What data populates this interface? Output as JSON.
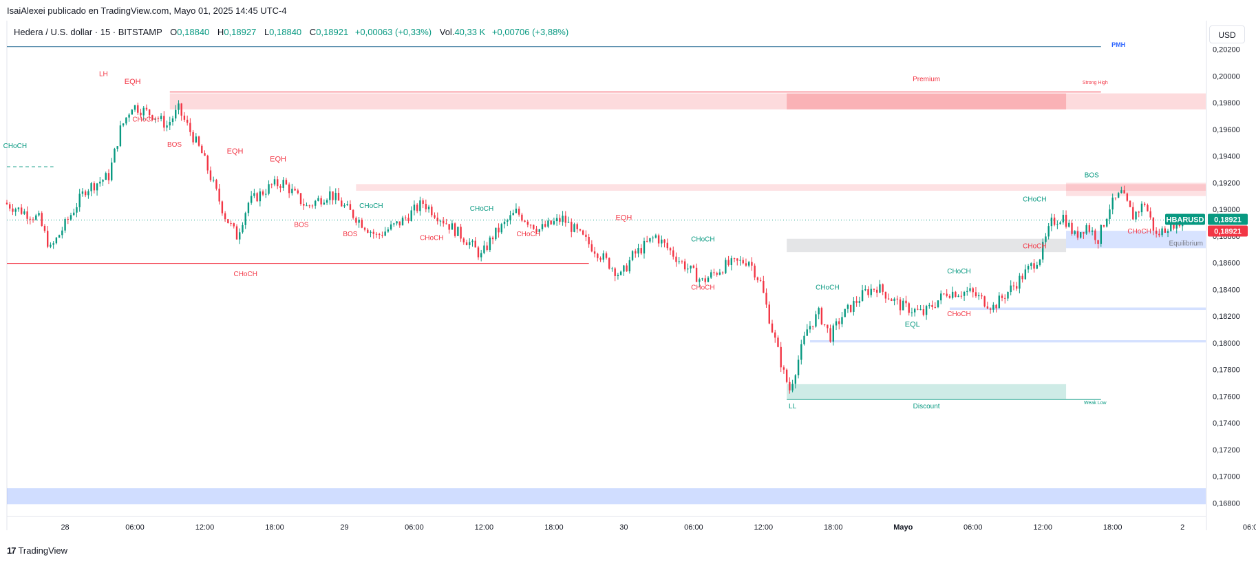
{
  "header": {
    "publish_line": "IsaiAlexei publicado en TradingView.com, Mayo 01, 2025 14:45 UTC-4"
  },
  "symbol": {
    "name": "Hedera / U.S. dollar · 15 · BITSTAMP",
    "o_label": "O",
    "o": "0,18840",
    "h_label": "H",
    "h": "0,18927",
    "l_label": "L",
    "l": "0,18840",
    "c_label": "C",
    "c": "0,18921",
    "change": "+0,00063 (+0,33%)",
    "vol_label": "Vol.",
    "vol": "40,33 K",
    "vol_change": "+0,00706 (+3,88%)"
  },
  "currency_button": "USD",
  "footer": {
    "brand": "TradingView",
    "logo": "17"
  },
  "colors": {
    "up": "#089981",
    "down": "#f23645",
    "premium": "#f23645",
    "discount": "#089981",
    "equilibrium": "#9598a1",
    "zone_blue": "#2962ff"
  },
  "chart_data": {
    "type": "candlestick",
    "symbol_tag": "HBARUSD",
    "last_price": "0,18921",
    "last_price_2": "0,18921",
    "y_range": [
      0.1675,
      0.2025
    ],
    "y_ticks": [
      "0,20200",
      "0,20000",
      "0,19800",
      "0,19600",
      "0,19400",
      "0,19200",
      "0,19000",
      "0,18800",
      "0,18600",
      "0,18400",
      "0,18200",
      "0,18000",
      "0,17800",
      "0,17600",
      "0,17400",
      "0,17200",
      "0,17000",
      "0,16800"
    ],
    "x_ticks": [
      "28",
      "06:00",
      "12:00",
      "18:00",
      "29",
      "06:00",
      "12:00",
      "18:00",
      "30",
      "06:00",
      "12:00",
      "18:00",
      "Mayo",
      "06:00",
      "12:00",
      "18:00",
      "2",
      "06:00"
    ],
    "x_range_hours": [
      -5,
      98
    ],
    "x_tick_hours": [
      0,
      6,
      12,
      18,
      24,
      30,
      36,
      42,
      48,
      54,
      60,
      66,
      72,
      78,
      84,
      90,
      96,
      102
    ],
    "price_path": [
      {
        "t": -5,
        "p": 0.1905
      },
      {
        "t": -2,
        "p": 0.1893
      },
      {
        "t": -1,
        "p": 0.187
      },
      {
        "t": 2,
        "p": 0.1915
      },
      {
        "t": 4,
        "p": 0.1925
      },
      {
        "t": 5,
        "p": 0.196
      },
      {
        "t": 6,
        "p": 0.1978
      },
      {
        "t": 8,
        "p": 0.197
      },
      {
        "t": 9,
        "p": 0.1963
      },
      {
        "t": 10,
        "p": 0.1975
      },
      {
        "t": 12,
        "p": 0.1942
      },
      {
        "t": 14,
        "p": 0.1895
      },
      {
        "t": 15,
        "p": 0.188
      },
      {
        "t": 16,
        "p": 0.1905
      },
      {
        "t": 18,
        "p": 0.1918
      },
      {
        "t": 19,
        "p": 0.192
      },
      {
        "t": 21,
        "p": 0.1902
      },
      {
        "t": 23,
        "p": 0.1912
      },
      {
        "t": 25,
        "p": 0.1896
      },
      {
        "t": 27,
        "p": 0.188
      },
      {
        "t": 29,
        "p": 0.189
      },
      {
        "t": 31,
        "p": 0.1905
      },
      {
        "t": 33,
        "p": 0.189
      },
      {
        "t": 35,
        "p": 0.1875
      },
      {
        "t": 36,
        "p": 0.1865
      },
      {
        "t": 37,
        "p": 0.188
      },
      {
        "t": 39,
        "p": 0.1898
      },
      {
        "t": 41,
        "p": 0.1885
      },
      {
        "t": 43,
        "p": 0.1893
      },
      {
        "t": 46,
        "p": 0.1868
      },
      {
        "t": 48,
        "p": 0.185
      },
      {
        "t": 49,
        "p": 0.1865
      },
      {
        "t": 51,
        "p": 0.188
      },
      {
        "t": 53,
        "p": 0.1862
      },
      {
        "t": 55,
        "p": 0.1846
      },
      {
        "t": 57,
        "p": 0.1858
      },
      {
        "t": 59,
        "p": 0.1862
      },
      {
        "t": 60,
        "p": 0.1845
      },
      {
        "t": 61,
        "p": 0.181
      },
      {
        "t": 62,
        "p": 0.1777
      },
      {
        "t": 62.5,
        "p": 0.1765
      },
      {
        "t": 63,
        "p": 0.178
      },
      {
        "t": 64,
        "p": 0.181
      },
      {
        "t": 65,
        "p": 0.1822
      },
      {
        "t": 66,
        "p": 0.1805
      },
      {
        "t": 67,
        "p": 0.182
      },
      {
        "t": 69,
        "p": 0.1838
      },
      {
        "t": 70,
        "p": 0.1842
      },
      {
        "t": 72,
        "p": 0.1828
      },
      {
        "t": 74,
        "p": 0.1822
      },
      {
        "t": 76,
        "p": 0.1838
      },
      {
        "t": 78,
        "p": 0.1838
      },
      {
        "t": 80,
        "p": 0.1827
      },
      {
        "t": 82,
        "p": 0.1845
      },
      {
        "t": 84,
        "p": 0.1865
      },
      {
        "t": 85,
        "p": 0.189
      },
      {
        "t": 86,
        "p": 0.1895
      },
      {
        "t": 87,
        "p": 0.188
      },
      {
        "t": 88,
        "p": 0.1888
      },
      {
        "t": 89,
        "p": 0.1878
      },
      {
        "t": 90,
        "p": 0.1902
      },
      {
        "t": 91,
        "p": 0.1912
      },
      {
        "t": 92,
        "p": 0.1895
      },
      {
        "t": 93,
        "p": 0.1905
      },
      {
        "t": 94,
        "p": 0.188
      },
      {
        "t": 95,
        "p": 0.1888
      },
      {
        "t": 96,
        "p": 0.1892
      }
    ],
    "zones": [
      {
        "name": "premium-zone",
        "t1": 9,
        "t2": 104,
        "p1": 0.1975,
        "p2": 0.1987,
        "color": "#f23645",
        "alpha": 0.18
      },
      {
        "name": "premium-inner-zone",
        "t1": 62,
        "t2": 86,
        "p1": 0.1975,
        "p2": 0.1987,
        "color": "#f23645",
        "alpha": 0.25
      },
      {
        "name": "supply-zone",
        "t1": 25,
        "t2": 104,
        "p1": 0.1914,
        "p2": 0.1919,
        "color": "#f23645",
        "alpha": 0.15
      },
      {
        "name": "supply-zone-right",
        "t1": 86,
        "t2": 104,
        "p1": 0.191,
        "p2": 0.192,
        "color": "#f23645",
        "alpha": 0.15
      },
      {
        "name": "equilibrium-zone",
        "t1": 62,
        "t2": 86,
        "p1": 0.1868,
        "p2": 0.1878,
        "color": "#9598a1",
        "alpha": 0.25
      },
      {
        "name": "demand-blue-zone",
        "t1": 86,
        "t2": 104,
        "p1": 0.1871,
        "p2": 0.1884,
        "color": "#2962ff",
        "alpha": 0.18
      },
      {
        "name": "blue-line-zone-1",
        "t1": 76,
        "t2": 104,
        "p1": 0.18247,
        "p2": 0.18265,
        "color": "#2962ff",
        "alpha": 0.2
      },
      {
        "name": "blue-line-zone-2",
        "t1": 64,
        "t2": 104,
        "p1": 0.18003,
        "p2": 0.1802,
        "color": "#2962ff",
        "alpha": 0.2
      },
      {
        "name": "discount-zone",
        "t1": 62,
        "t2": 86,
        "p1": 0.1758,
        "p2": 0.1769,
        "color": "#089981",
        "alpha": 0.2
      },
      {
        "name": "bottom-blue-zone",
        "t1": -5,
        "t2": 104,
        "p1": 0.1679,
        "p2": 0.1691,
        "color": "#2962ff",
        "alpha": 0.22
      }
    ],
    "levels": [
      {
        "name": "pmh-line",
        "t1": -5,
        "t2": 89,
        "p": 0.2022,
        "color": "#2a6f97",
        "dash": false
      },
      {
        "name": "strong-high-line",
        "t1": 9,
        "t2": 89,
        "p": 0.1988,
        "color": "#f23645",
        "dash": false
      },
      {
        "name": "weak-low-line",
        "t1": 62,
        "t2": 89,
        "p": 0.17575,
        "color": "#089981",
        "dash": false
      },
      {
        "name": "choch-red-line",
        "t1": -5,
        "t2": 45,
        "p": 0.18595,
        "color": "#f23645",
        "dash": false
      },
      {
        "name": "choch-green-dash",
        "t1": -5,
        "t2": -1,
        "p": 0.1932,
        "color": "#089981",
        "dash": true
      },
      {
        "name": "last-price-line",
        "t1": -5,
        "t2": 104,
        "p": 0.18921,
        "color": "#089981",
        "dash": "dot"
      }
    ],
    "annotations": [
      {
        "text": "PMH",
        "t": 90.5,
        "p": 0.2022,
        "color": "#2962ff",
        "size": 9,
        "bold": true
      },
      {
        "text": "LH",
        "t": 3.3,
        "p": 0.2,
        "color": "#f23645",
        "size": 10
      },
      {
        "text": "EQH",
        "t": 5.8,
        "p": 0.1994,
        "color": "#f23645",
        "size": 11
      },
      {
        "text": "CHoCH",
        "t": 6.8,
        "p": 0.1966,
        "color": "#f23645",
        "size": 10
      },
      {
        "text": "BOS",
        "t": 9.4,
        "p": 0.1947,
        "color": "#f23645",
        "size": 10
      },
      {
        "text": "CHoCH",
        "t": -4.3,
        "p": 0.1946,
        "color": "#089981",
        "size": 10
      },
      {
        "text": "EQH",
        "t": 14.6,
        "p": 0.1942,
        "color": "#f23645",
        "size": 11
      },
      {
        "text": "EQH",
        "t": 18.3,
        "p": 0.1936,
        "color": "#f23645",
        "size": 11
      },
      {
        "text": "BOS",
        "t": 20.3,
        "p": 0.1887,
        "color": "#f23645",
        "size": 10
      },
      {
        "text": "BOS",
        "t": 24.5,
        "p": 0.188,
        "color": "#f23645",
        "size": 10
      },
      {
        "text": "CHoCH",
        "t": 26.3,
        "p": 0.1901,
        "color": "#089981",
        "size": 10
      },
      {
        "text": "CHoCH",
        "t": 31.5,
        "p": 0.1877,
        "color": "#f23645",
        "size": 10
      },
      {
        "text": "CHoCH",
        "t": 35.8,
        "p": 0.1899,
        "color": "#089981",
        "size": 10
      },
      {
        "text": "CHoCH",
        "t": 39.8,
        "p": 0.188,
        "color": "#f23645",
        "size": 10
      },
      {
        "text": "EQH",
        "t": 48.0,
        "p": 0.1892,
        "color": "#f23645",
        "size": 11
      },
      {
        "text": "CHoCH",
        "t": 54.8,
        "p": 0.1876,
        "color": "#089981",
        "size": 10
      },
      {
        "text": "CHoCH",
        "t": 54.8,
        "p": 0.184,
        "color": "#f23645",
        "size": 10
      },
      {
        "text": "CHoCH",
        "t": 15.5,
        "p": 0.185,
        "color": "#f23645",
        "size": 10
      },
      {
        "text": "Premium",
        "t": 74,
        "p": 0.1996,
        "color": "#f23645",
        "size": 10
      },
      {
        "text": "Strong High",
        "t": 88.5,
        "p": 0.1994,
        "color": "#f23645",
        "size": 7
      },
      {
        "text": "CHoCH",
        "t": 65.5,
        "p": 0.184,
        "color": "#089981",
        "size": 10
      },
      {
        "text": "EQL",
        "t": 72.8,
        "p": 0.1812,
        "color": "#089981",
        "size": 11
      },
      {
        "text": "CHoCH",
        "t": 76.8,
        "p": 0.1852,
        "color": "#089981",
        "size": 10
      },
      {
        "text": "CHoCH",
        "t": 76.8,
        "p": 0.182,
        "color": "#f23645",
        "size": 10
      },
      {
        "text": "CHoCH",
        "t": 83.3,
        "p": 0.1906,
        "color": "#089981",
        "size": 10
      },
      {
        "text": "CHoCH",
        "t": 83.3,
        "p": 0.1871,
        "color": "#f23645",
        "size": 10
      },
      {
        "text": "BOS",
        "t": 88.2,
        "p": 0.1924,
        "color": "#089981",
        "size": 10
      },
      {
        "text": "CHoCH",
        "t": 92.3,
        "p": 0.1882,
        "color": "#f23645",
        "size": 10
      },
      {
        "text": "Equilibrium",
        "t": 96.3,
        "p": 0.1873,
        "color": "#787b86",
        "size": 10
      },
      {
        "text": "LL",
        "t": 62.5,
        "p": 0.1751,
        "color": "#089981",
        "size": 10
      },
      {
        "text": "Discount",
        "t": 74,
        "p": 0.1751,
        "color": "#089981",
        "size": 10
      },
      {
        "text": "Weak Low",
        "t": 88.5,
        "p": 0.1754,
        "color": "#089981",
        "size": 7
      }
    ]
  }
}
